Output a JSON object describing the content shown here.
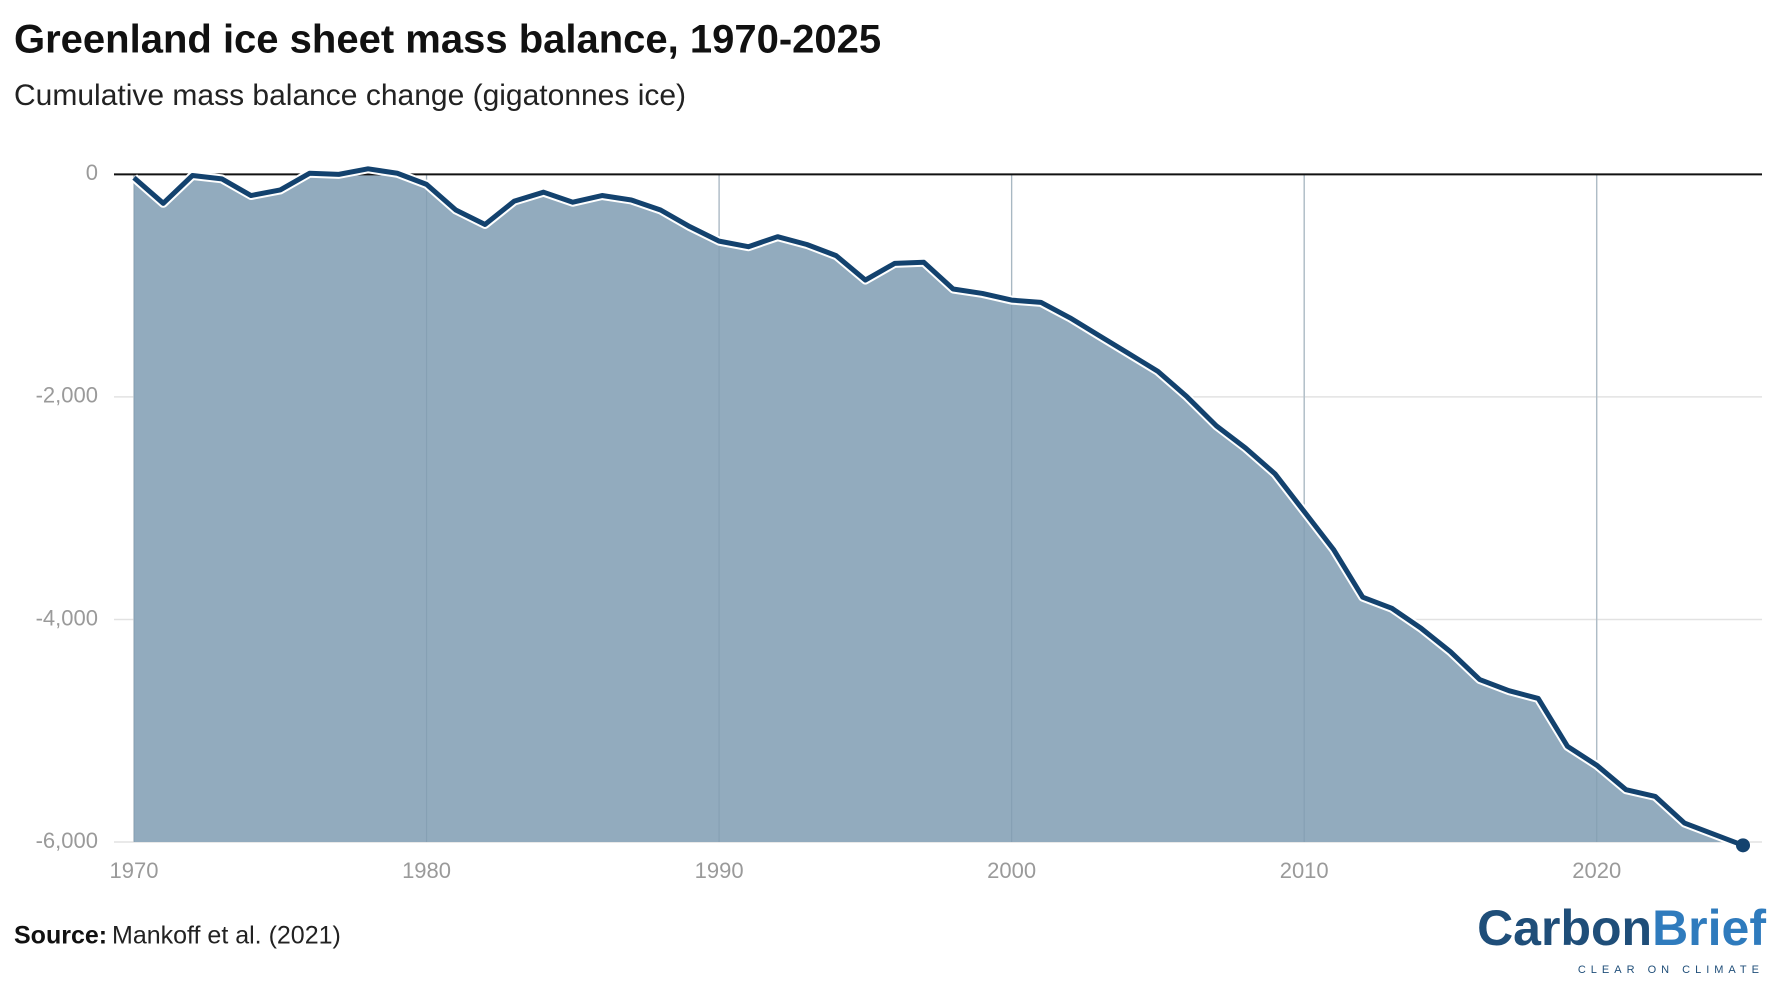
{
  "chart_data": {
    "type": "area",
    "title": "Greenland ice sheet mass balance, 1970-2025",
    "subtitle": "Cumulative mass balance change (gigatonnes ice)",
    "x": [
      1970,
      1971,
      1972,
      1973,
      1974,
      1975,
      1976,
      1977,
      1978,
      1979,
      1980,
      1981,
      1982,
      1983,
      1984,
      1985,
      1986,
      1987,
      1988,
      1989,
      1990,
      1991,
      1992,
      1993,
      1994,
      1995,
      1996,
      1997,
      1998,
      1999,
      2000,
      2001,
      2002,
      2003,
      2004,
      2005,
      2006,
      2007,
      2008,
      2009,
      2010,
      2011,
      2012,
      2013,
      2014,
      2015,
      2016,
      2017,
      2018,
      2019,
      2020,
      2021,
      2022,
      2023,
      2024,
      2025
    ],
    "values": [
      -30,
      -260,
      -10,
      -40,
      -190,
      -140,
      10,
      0,
      50,
      10,
      -90,
      -320,
      -450,
      -240,
      -160,
      -250,
      -190,
      -230,
      -320,
      -470,
      -600,
      -650,
      -560,
      -630,
      -730,
      -950,
      -800,
      -790,
      -1030,
      -1070,
      -1130,
      -1150,
      -1290,
      -1450,
      -1610,
      -1770,
      -2000,
      -2260,
      -2460,
      -2690,
      -3030,
      -3370,
      -3800,
      -3900,
      -4080,
      -4290,
      -4540,
      -4640,
      -4710,
      -5140,
      -5310,
      -5530,
      -5590,
      -5830,
      -5930,
      -6030
    ],
    "line_color": "#13426e",
    "fill_color": "#92abbe",
    "xlim": [
      1970,
      2025
    ],
    "xticks": [
      1970,
      1980,
      1990,
      2000,
      2010,
      2020
    ],
    "ylim": [
      -6000,
      300
    ],
    "yticks": [
      {
        "value": -6000,
        "label": "-6,000"
      },
      {
        "value": -4000,
        "label": "-4,000"
      },
      {
        "value": -2000,
        "label": "-2,000"
      },
      0
    ],
    "grid": true,
    "source_label": "Source:",
    "source": "Mankoff et al. (2021)",
    "logo": {
      "part1": "Carbon",
      "part2": "Brief",
      "tagline": "CLEAR ON CLIMATE"
    }
  }
}
